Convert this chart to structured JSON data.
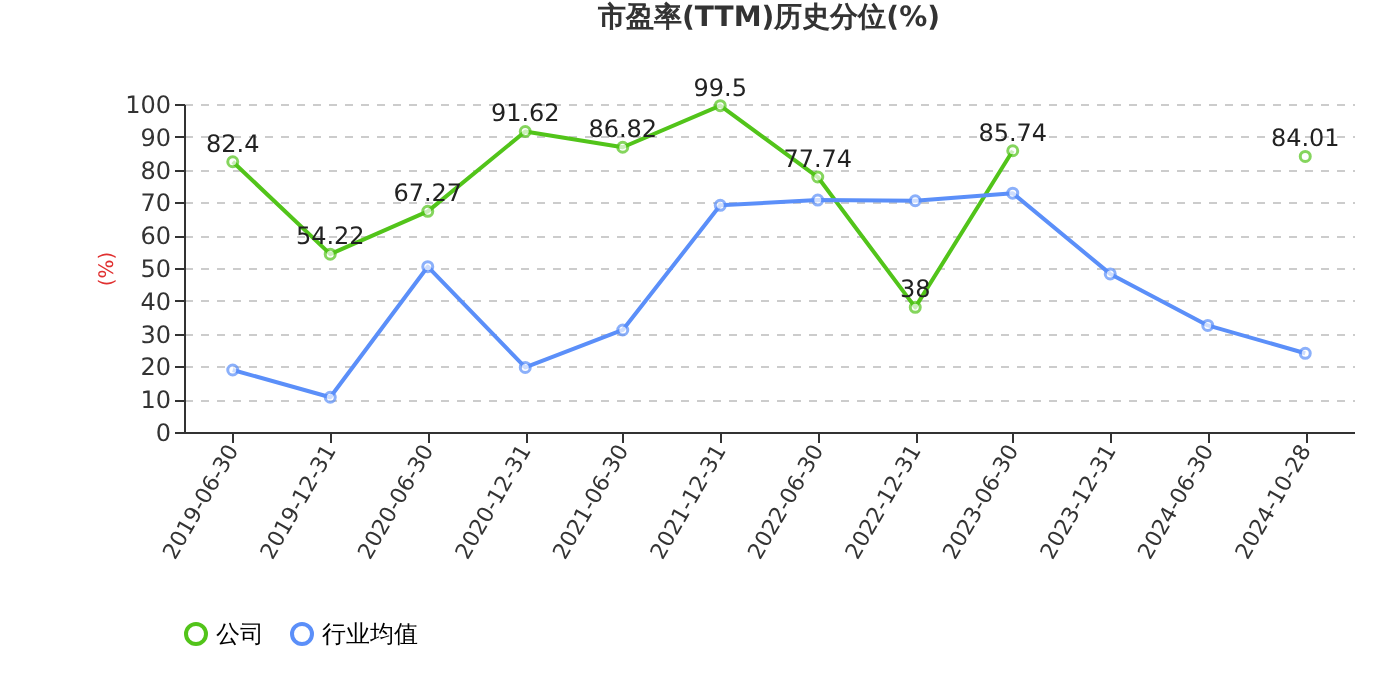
{
  "chart_data": {
    "type": "line",
    "title": "市盈率(TTM)历史分位(%)",
    "ylabel": "(%)",
    "categories": [
      "2019-06-30",
      "2019-12-31",
      "2020-06-30",
      "2020-12-31",
      "2021-06-30",
      "2021-12-31",
      "2022-06-30",
      "2022-12-31",
      "2023-06-30",
      "2023-12-31",
      "2024-06-30",
      "2024-10-28"
    ],
    "series": [
      {
        "name": "公司",
        "color": "#52c41a",
        "values": [
          82.4,
          54.22,
          67.27,
          91.62,
          86.82,
          99.5,
          77.74,
          38,
          85.74,
          null,
          null,
          84.01
        ],
        "value_labels": [
          "82.4",
          "54.22",
          "67.27",
          "91.62",
          "86.82",
          "99.5",
          "77.74",
          "38",
          "85.74",
          null,
          null,
          "84.01"
        ]
      },
      {
        "name": "行业均值",
        "color": "#5b8ff9",
        "values": [
          18.9,
          10.6,
          50.4,
          19.7,
          31.1,
          69.1,
          70.7,
          70.5,
          72.8,
          48.2,
          32.5,
          24.0
        ]
      }
    ],
    "ylim": [
      0,
      100
    ],
    "yticks": [
      0,
      10,
      20,
      30,
      40,
      50,
      60,
      70,
      80,
      90,
      100
    ],
    "grid": "y",
    "legend": "bottom",
    "marker": "circle",
    "line_style": "solid"
  }
}
